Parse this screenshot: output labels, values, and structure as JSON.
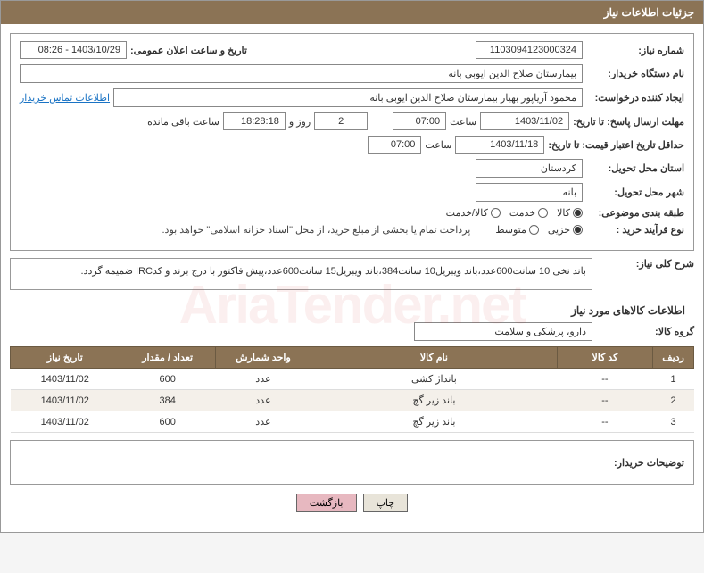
{
  "header": {
    "title": "جزئیات اطلاعات نیاز"
  },
  "form": {
    "need_number_label": "شماره نیاز:",
    "need_number": "1103094123000324",
    "announce_date_label": "تاریخ و ساعت اعلان عمومی:",
    "announce_date": "1403/10/29 - 08:26",
    "buyer_org_label": "نام دستگاه خریدار:",
    "buyer_org": "بیمارستان صلاح الدین ایوبی بانه",
    "requester_label": "ایجاد کننده درخواست:",
    "requester": "محمود آریاپور بهیار بیمارستان صلاح الدین ایوبی بانه",
    "contact_link": "اطلاعات تماس خریدار",
    "response_deadline_label": "مهلت ارسال پاسخ: تا تاریخ:",
    "response_date": "1403/11/02",
    "time_label": "ساعت",
    "response_time": "07:00",
    "days_remain": "2",
    "days_and": "روز و",
    "time_remain": "18:28:18",
    "remain_suffix": "ساعت باقی مانده",
    "validity_label": "حداقل تاریخ اعتبار قیمت: تا تاریخ:",
    "validity_date": "1403/11/18",
    "validity_time": "07:00",
    "delivery_province_label": "استان محل تحویل:",
    "delivery_province": "کردستان",
    "delivery_city_label": "شهر محل تحویل:",
    "delivery_city": "بانه",
    "category_label": "طبقه بندی موضوعی:",
    "cat_goods": "کالا",
    "cat_service": "خدمت",
    "cat_both": "کالا/خدمت",
    "process_label": "نوع فرآیند خرید :",
    "proc_partial": "جزیی",
    "proc_medium": "متوسط",
    "payment_note": "پرداخت تمام یا بخشی از مبلغ خرید، از محل \"اسناد خزانه اسلامی\" خواهد بود.",
    "general_desc_label": "شرح کلی نیاز:",
    "general_desc": "باند نخی 10 سانت600عدد،باند ویبریل10 سانت384،باند ویبریل15 سانت600عدد،پیش فاکتور با درج برند و کدIRC ضمیمه گردد.",
    "goods_info_title": "اطلاعات کالاهای مورد نیاز",
    "goods_group_label": "گروه کالا:",
    "goods_group": "دارو، پزشکی و سلامت"
  },
  "table": {
    "headers": {
      "row": "ردیف",
      "code": "کد کالا",
      "name": "نام کالا",
      "unit": "واحد شمارش",
      "qty": "تعداد / مقدار",
      "date": "تاریخ نیاز"
    },
    "rows": [
      {
        "n": "1",
        "code": "--",
        "name": "بانداژ کشی",
        "unit": "عدد",
        "qty": "600",
        "date": "1403/11/02"
      },
      {
        "n": "2",
        "code": "--",
        "name": "باند زیر گچ",
        "unit": "عدد",
        "qty": "384",
        "date": "1403/11/02"
      },
      {
        "n": "3",
        "code": "--",
        "name": "باند زیر گچ",
        "unit": "عدد",
        "qty": "600",
        "date": "1403/11/02"
      }
    ]
  },
  "buyer_notes_label": "توضیحات خریدار:",
  "buttons": {
    "print": "چاپ",
    "back": "بازگشت"
  },
  "watermark": "AriaTender.net",
  "colors": {
    "header_bg": "#8b7355",
    "border": "#999999",
    "link": "#1a73c4",
    "btn_back": "#e7b8c0"
  }
}
